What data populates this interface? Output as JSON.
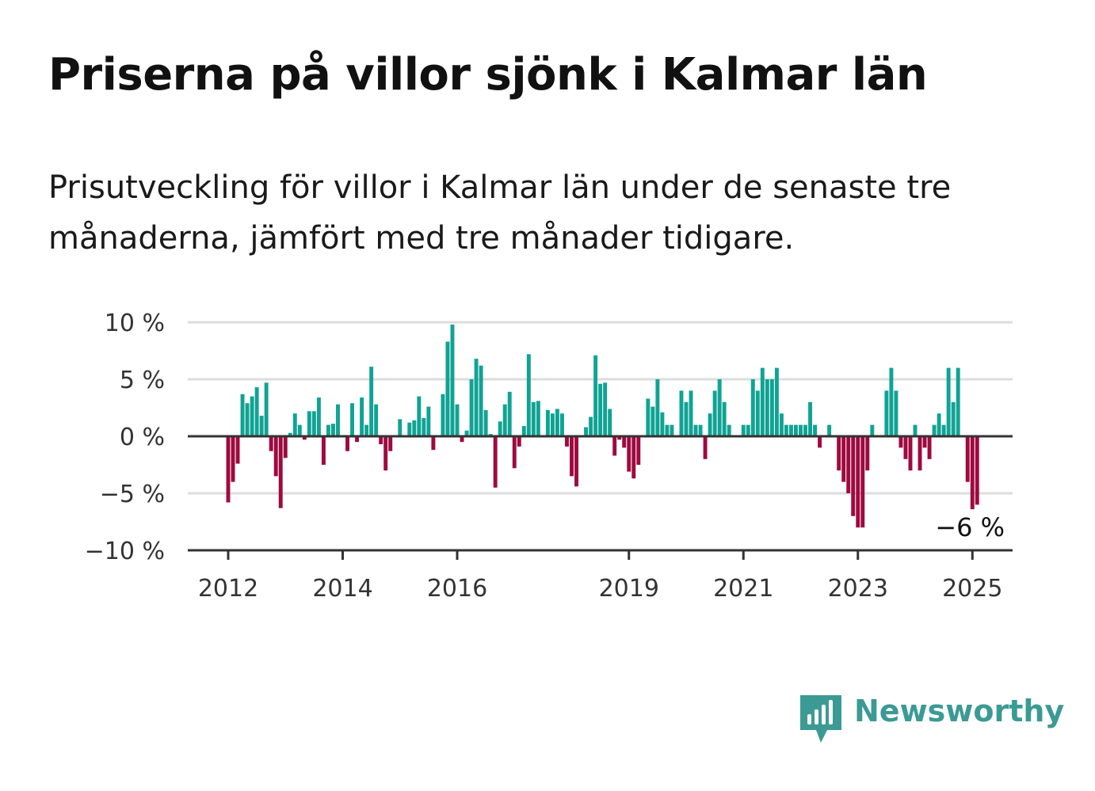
{
  "title": "Priserna på villor sjönk i Kalmar län",
  "subtitle": "Prisutveckling för villor i Kalmar län under de senaste tre månaderna, jämfört med tre månader tidigare.",
  "brand": "Newsworthy",
  "colors": {
    "positive": "#10a394",
    "negative": "#9e0a3f",
    "grid": "#dddddd",
    "axis": "#333333",
    "brand": "#3b9a94"
  },
  "chart_data": {
    "type": "bar",
    "ylim": [
      -10,
      10
    ],
    "y_ticks": [
      {
        "value": 10,
        "label": "10 %"
      },
      {
        "value": 5,
        "label": "5 %"
      },
      {
        "value": 0,
        "label": "0 %"
      },
      {
        "value": -5,
        "label": "−5 %"
      },
      {
        "value": -10,
        "label": "−10 %"
      }
    ],
    "x_ticks": [
      {
        "year": 2012,
        "label": "2012"
      },
      {
        "year": 2014,
        "label": "2014"
      },
      {
        "year": 2016,
        "label": "2016"
      },
      {
        "year": 2019,
        "label": "2019"
      },
      {
        "year": 2021,
        "label": "2021"
      },
      {
        "year": 2023,
        "label": "2023"
      },
      {
        "year": 2025,
        "label": "2025"
      }
    ],
    "start": "2012-01",
    "end": "2025-01",
    "end_label": "−6 %",
    "values": [
      -5.8,
      -4.0,
      -2.4,
      3.7,
      2.9,
      3.5,
      4.3,
      1.8,
      4.7,
      -1.3,
      -3.5,
      -6.3,
      -1.9,
      0.3,
      2.0,
      1.0,
      -0.3,
      2.2,
      2.2,
      3.4,
      -2.5,
      1.0,
      1.1,
      2.8,
      -0.1,
      -1.3,
      2.9,
      -0.5,
      3.4,
      1.0,
      6.1,
      2.8,
      -0.7,
      -3.0,
      -1.3,
      0.0,
      1.5,
      0.0,
      1.2,
      1.4,
      3.5,
      1.6,
      2.6,
      -1.2,
      0.0,
      3.7,
      8.3,
      9.8,
      2.8,
      -0.5,
      0.5,
      5.0,
      6.8,
      6.2,
      2.3,
      0.2,
      -4.5,
      1.3,
      2.8,
      3.9,
      -2.8,
      -0.9,
      0.9,
      7.2,
      3.0,
      3.1,
      0.0,
      2.3,
      2.0,
      2.4,
      2.0,
      -0.9,
      -3.5,
      -4.4,
      0.0,
      0.8,
      1.7,
      7.1,
      4.6,
      4.7,
      2.4,
      -1.7,
      -0.3,
      -1.0,
      -3.1,
      -3.7,
      -2.5,
      0.0,
      3.3,
      2.6,
      5.0,
      2.1,
      1.0,
      1.0,
      0.0,
      4.0,
      3.0,
      4.0,
      1.0,
      1.0,
      -2.0,
      2.0,
      4.0,
      5.0,
      3.0,
      1.0,
      0.0,
      0.0,
      1.0,
      1.0,
      5.0,
      4.0,
      6.0,
      5.0,
      5.0,
      6.0,
      2.0,
      1.0,
      1.0,
      1.0,
      1.0,
      1.0,
      3.0,
      1.0,
      -1.0,
      0.0,
      1.0,
      0.0,
      -3.0,
      -4.0,
      -5.0,
      -7.0,
      -8.0,
      -8.0,
      -3.0,
      1.0,
      0.0,
      0.0,
      4.0,
      6.0,
      4.0,
      -1.0,
      -2.0,
      -3.0,
      1.0,
      -3.0,
      -1.0,
      -2.0,
      1.0,
      2.0,
      1.0,
      6.0,
      3.0,
      6.0,
      0.0,
      -4.0,
      -6.4,
      -6.0
    ]
  }
}
